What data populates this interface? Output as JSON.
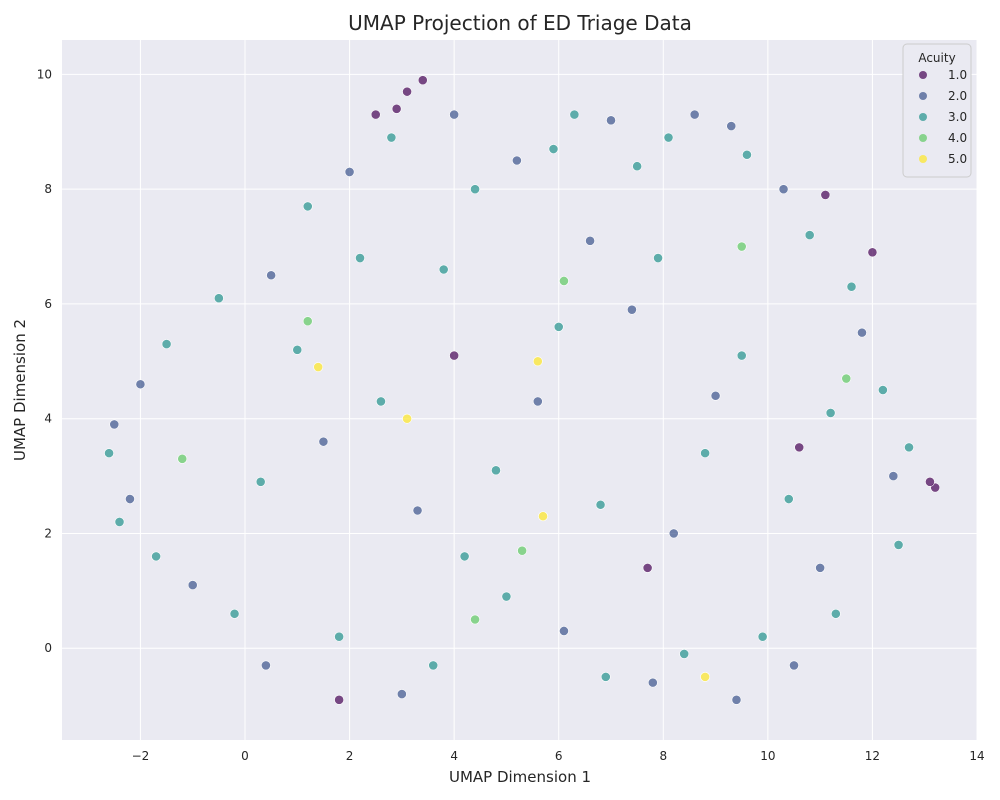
{
  "chart_data": {
    "type": "scatter",
    "title": "UMAP Projection of ED Triage Data",
    "xlabel": "UMAP Dimension 1",
    "ylabel": "UMAP Dimension 2",
    "xlim": [
      -3.5,
      14
    ],
    "ylim": [
      -1.6,
      10.6
    ],
    "xticks": [
      -2,
      0,
      2,
      4,
      6,
      8,
      10,
      12,
      14
    ],
    "yticks": [
      0,
      2,
      4,
      6,
      8,
      10
    ],
    "xtick_labels": [
      "−2",
      "0",
      "2",
      "4",
      "6",
      "8",
      "10",
      "12",
      "14"
    ],
    "ytick_labels": [
      "0",
      "2",
      "4",
      "6",
      "8",
      "10"
    ],
    "grid": true,
    "legend": {
      "title": "Acuity",
      "placement": "top-right",
      "entries": [
        "1.0",
        "2.0",
        "3.0",
        "4.0",
        "5.0"
      ]
    },
    "colors": {
      "1.0": "#440154",
      "2.0": "#3b528b",
      "3.0": "#21918c",
      "4.0": "#5ec962",
      "5.0": "#fde725"
    },
    "background": "#eaeaf2",
    "point_alpha": 0.7,
    "points": [
      {
        "x": 3.4,
        "y": 9.9,
        "acuity": 1
      },
      {
        "x": 3.1,
        "y": 9.7,
        "acuity": 1
      },
      {
        "x": 2.5,
        "y": 9.3,
        "acuity": 1
      },
      {
        "x": 2.9,
        "y": 9.4,
        "acuity": 1
      },
      {
        "x": 12.0,
        "y": 6.9,
        "acuity": 1
      },
      {
        "x": 13.2,
        "y": 2.8,
        "acuity": 1
      },
      {
        "x": 13.1,
        "y": 2.9,
        "acuity": 1
      },
      {
        "x": 11.1,
        "y": 7.9,
        "acuity": 1
      },
      {
        "x": 1.8,
        "y": -0.9,
        "acuity": 1
      },
      {
        "x": 4.0,
        "y": 5.1,
        "acuity": 1
      },
      {
        "x": 7.7,
        "y": 1.4,
        "acuity": 1
      },
      {
        "x": 10.6,
        "y": 3.5,
        "acuity": 1
      },
      {
        "x": -2.0,
        "y": 4.6,
        "acuity": 2
      },
      {
        "x": -2.5,
        "y": 3.9,
        "acuity": 2
      },
      {
        "x": -2.2,
        "y": 2.6,
        "acuity": 2
      },
      {
        "x": 0.5,
        "y": 6.5,
        "acuity": 2
      },
      {
        "x": 2.0,
        "y": 8.3,
        "acuity": 2
      },
      {
        "x": 4.0,
        "y": 9.3,
        "acuity": 2
      },
      {
        "x": 5.2,
        "y": 8.5,
        "acuity": 2
      },
      {
        "x": 7.0,
        "y": 9.2,
        "acuity": 2
      },
      {
        "x": 8.6,
        "y": 9.3,
        "acuity": 2
      },
      {
        "x": 9.3,
        "y": 9.1,
        "acuity": 2
      },
      {
        "x": 10.3,
        "y": 8.0,
        "acuity": 2
      },
      {
        "x": 11.8,
        "y": 5.5,
        "acuity": 2
      },
      {
        "x": 12.4,
        "y": 3.0,
        "acuity": 2
      },
      {
        "x": 10.5,
        "y": -0.3,
        "acuity": 2
      },
      {
        "x": 9.4,
        "y": -0.9,
        "acuity": 2
      },
      {
        "x": 7.8,
        "y": -0.6,
        "acuity": 2
      },
      {
        "x": 6.1,
        "y": 0.3,
        "acuity": 2
      },
      {
        "x": 3.0,
        "y": -0.8,
        "acuity": 2
      },
      {
        "x": 0.4,
        "y": -0.3,
        "acuity": 2
      },
      {
        "x": -1.0,
        "y": 1.1,
        "acuity": 2
      },
      {
        "x": 1.5,
        "y": 3.6,
        "acuity": 2
      },
      {
        "x": 3.3,
        "y": 2.4,
        "acuity": 2
      },
      {
        "x": 5.6,
        "y": 4.3,
        "acuity": 2
      },
      {
        "x": 7.4,
        "y": 5.9,
        "acuity": 2
      },
      {
        "x": 9.0,
        "y": 4.4,
        "acuity": 2
      },
      {
        "x": 6.6,
        "y": 7.1,
        "acuity": 2
      },
      {
        "x": 8.2,
        "y": 2.0,
        "acuity": 2
      },
      {
        "x": 11.0,
        "y": 1.4,
        "acuity": 2
      },
      {
        "x": -2.6,
        "y": 3.4,
        "acuity": 3
      },
      {
        "x": -2.4,
        "y": 2.2,
        "acuity": 3
      },
      {
        "x": -1.5,
        "y": 5.3,
        "acuity": 3
      },
      {
        "x": -0.5,
        "y": 6.1,
        "acuity": 3
      },
      {
        "x": 1.2,
        "y": 7.7,
        "acuity": 3
      },
      {
        "x": 2.8,
        "y": 8.9,
        "acuity": 3
      },
      {
        "x": 4.4,
        "y": 8.0,
        "acuity": 3
      },
      {
        "x": 5.9,
        "y": 8.7,
        "acuity": 3
      },
      {
        "x": 6.3,
        "y": 9.3,
        "acuity": 3
      },
      {
        "x": 7.5,
        "y": 8.4,
        "acuity": 3
      },
      {
        "x": 8.1,
        "y": 8.9,
        "acuity": 3
      },
      {
        "x": 9.6,
        "y": 8.6,
        "acuity": 3
      },
      {
        "x": 10.8,
        "y": 7.2,
        "acuity": 3
      },
      {
        "x": 11.6,
        "y": 6.3,
        "acuity": 3
      },
      {
        "x": 12.2,
        "y": 4.5,
        "acuity": 3
      },
      {
        "x": 12.7,
        "y": 3.5,
        "acuity": 3
      },
      {
        "x": 12.5,
        "y": 1.8,
        "acuity": 3
      },
      {
        "x": 11.3,
        "y": 0.6,
        "acuity": 3
      },
      {
        "x": 9.9,
        "y": 0.2,
        "acuity": 3
      },
      {
        "x": 8.4,
        "y": -0.1,
        "acuity": 3
      },
      {
        "x": 6.9,
        "y": -0.5,
        "acuity": 3
      },
      {
        "x": 5.0,
        "y": 0.9,
        "acuity": 3
      },
      {
        "x": 3.6,
        "y": -0.3,
        "acuity": 3
      },
      {
        "x": 1.8,
        "y": 0.2,
        "acuity": 3
      },
      {
        "x": -0.2,
        "y": 0.6,
        "acuity": 3
      },
      {
        "x": -1.7,
        "y": 1.6,
        "acuity": 3
      },
      {
        "x": 0.3,
        "y": 2.9,
        "acuity": 3
      },
      {
        "x": 1.0,
        "y": 5.2,
        "acuity": 3
      },
      {
        "x": 2.6,
        "y": 4.3,
        "acuity": 3
      },
      {
        "x": 3.8,
        "y": 6.6,
        "acuity": 3
      },
      {
        "x": 4.8,
        "y": 3.1,
        "acuity": 3
      },
      {
        "x": 6.0,
        "y": 5.6,
        "acuity": 3
      },
      {
        "x": 6.8,
        "y": 2.5,
        "acuity": 3
      },
      {
        "x": 7.9,
        "y": 6.8,
        "acuity": 3
      },
      {
        "x": 8.8,
        "y": 3.4,
        "acuity": 3
      },
      {
        "x": 9.5,
        "y": 5.1,
        "acuity": 3
      },
      {
        "x": 10.4,
        "y": 2.6,
        "acuity": 3
      },
      {
        "x": 11.2,
        "y": 4.1,
        "acuity": 3
      },
      {
        "x": 4.2,
        "y": 1.6,
        "acuity": 3
      },
      {
        "x": 2.2,
        "y": 6.8,
        "acuity": 3
      },
      {
        "x": 9.5,
        "y": 7.0,
        "acuity": 4
      },
      {
        "x": 5.3,
        "y": 1.7,
        "acuity": 4
      },
      {
        "x": 4.4,
        "y": 0.5,
        "acuity": 4
      },
      {
        "x": 1.2,
        "y": 5.7,
        "acuity": 4
      },
      {
        "x": 6.1,
        "y": 6.4,
        "acuity": 4
      },
      {
        "x": 11.5,
        "y": 4.7,
        "acuity": 4
      },
      {
        "x": -1.2,
        "y": 3.3,
        "acuity": 4
      },
      {
        "x": 3.1,
        "y": 4.0,
        "acuity": 5
      },
      {
        "x": 1.4,
        "y": 4.9,
        "acuity": 5
      },
      {
        "x": 5.7,
        "y": 2.3,
        "acuity": 5
      },
      {
        "x": 8.8,
        "y": -0.5,
        "acuity": 5
      },
      {
        "x": 5.6,
        "y": 5.0,
        "acuity": 5
      }
    ]
  }
}
